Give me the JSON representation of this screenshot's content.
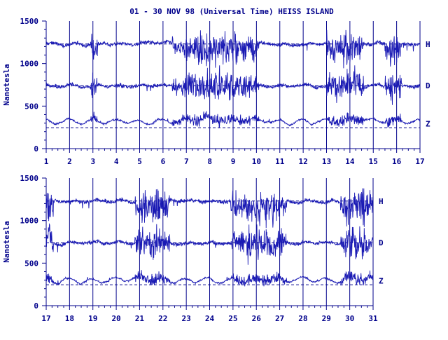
{
  "title": "01 - 30 NOV 98 (Universal Time) HEISS ISLAND",
  "colors": {
    "ink": "#00008b",
    "trace": "#1a1ab4",
    "background": "#ffffff"
  },
  "chart_data": [
    {
      "type": "line",
      "title": "01 - 30 NOV 98 (Universal Time) HEISS ISLAND",
      "ylabel": "Nanotesla",
      "xlabel": "",
      "ylim": [
        0,
        1500
      ],
      "yticks": [
        "0",
        "500",
        "1000",
        "1500"
      ],
      "xlim": [
        1,
        17
      ],
      "xticks": [
        "1",
        "2",
        "3",
        "4",
        "5",
        "6",
        "7",
        "8",
        "9",
        "10",
        "11",
        "12",
        "13",
        "14",
        "15",
        "16",
        "17"
      ],
      "vertical_day_lines": true,
      "reference_levels": [
        1230,
        740,
        245
      ],
      "series": [
        {
          "name": "H",
          "baseline": 1230,
          "disturbance_scale": 1.0
        },
        {
          "name": "D",
          "baseline": 740,
          "disturbance_scale": 1.0
        },
        {
          "name": "Z",
          "baseline": 320,
          "disturbance_scale": 0.7
        }
      ],
      "disturbed_intervals": [
        [
          2.9,
          3.2
        ],
        [
          6.4,
          10.1
        ],
        [
          13.0,
          14.6
        ],
        [
          15.5,
          16.2
        ]
      ]
    },
    {
      "type": "line",
      "title": "",
      "ylabel": "Nanotesla",
      "xlabel": "",
      "ylim": [
        0,
        1500
      ],
      "yticks": [
        "0",
        "500",
        "1000",
        "1500"
      ],
      "xlim": [
        17,
        31
      ],
      "xticks": [
        "17",
        "18",
        "19",
        "20",
        "21",
        "22",
        "23",
        "24",
        "25",
        "26",
        "27",
        "28",
        "29",
        "30",
        "31"
      ],
      "vertical_day_lines": true,
      "reference_levels": [
        1230,
        740,
        245
      ],
      "series": [
        {
          "name": "H",
          "baseline": 1230,
          "disturbance_scale": 1.0
        },
        {
          "name": "D",
          "baseline": 740,
          "disturbance_scale": 1.0
        },
        {
          "name": "Z",
          "baseline": 300,
          "disturbance_scale": 0.7
        }
      ],
      "disturbed_intervals": [
        [
          17.0,
          17.3
        ],
        [
          20.8,
          22.3
        ],
        [
          24.9,
          27.3
        ],
        [
          29.6,
          31.0
        ]
      ]
    }
  ]
}
